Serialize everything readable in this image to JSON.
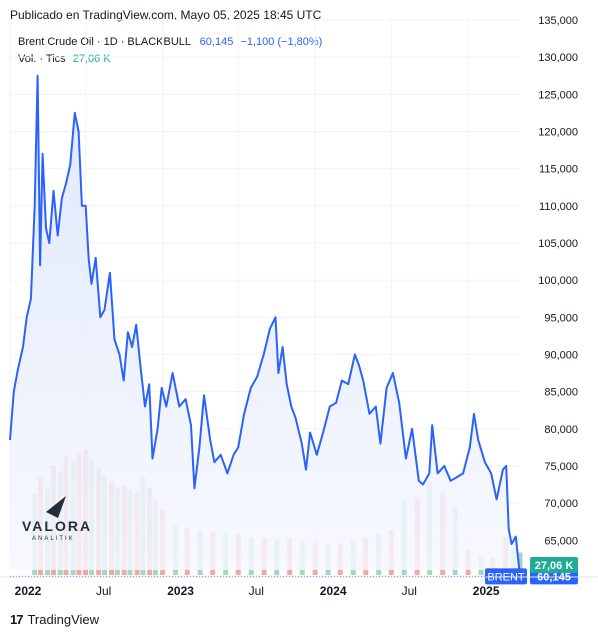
{
  "header": {
    "published": "Publicado en TradingView.com, Mayo 05, 2025 18:45 UTC"
  },
  "legend": {
    "symbol": "Brent Crude Oil · 1D · BLACKBULL",
    "last": "60,145",
    "change": "−1,100 (−1,80%)",
    "volume_label": "Vol. · Tics",
    "volume_value": "27,06 K"
  },
  "watermark": {
    "brand": "VALORA",
    "sub": "ANALITIK"
  },
  "footer": {
    "logo_glyph": "17",
    "brand": "TradingView"
  },
  "colors": {
    "line": "#2962ff",
    "area_top": "#dbe4fb",
    "area_bottom": "#f6f8fe",
    "vol_up": "#a5d6c4",
    "vol_down": "#f0a8a4",
    "price_tag_bg": "#2962ff",
    "volume_tag_bg": "#22ab94",
    "grid": "#f0f3fa",
    "axis_text": "#131722"
  },
  "chart_data": {
    "type": "line",
    "y_axis": {
      "min": 61000,
      "max": 135000,
      "ticks": [
        65000,
        70000,
        75000,
        80000,
        85000,
        90000,
        95000,
        100000,
        105000,
        110000,
        115000,
        120000,
        125000,
        130000,
        135000
      ],
      "tick_labels": [
        "65,000",
        "70,000",
        "75,000",
        "80,000",
        "85,000",
        "90,000",
        "95,000",
        "100,000",
        "105,000",
        "110,000",
        "115,000",
        "120,000",
        "125,000",
        "130,000",
        "135,000"
      ]
    },
    "x_axis": {
      "min": "2022-01-01",
      "max": "2025-05-05",
      "ticks": [
        "2022-01-01",
        "2022-07-01",
        "2023-01-01",
        "2023-07-01",
        "2024-01-01",
        "2024-07-01",
        "2025-01-01"
      ],
      "tick_labels": [
        "2022",
        "Jul",
        "2023",
        "Jul",
        "2024",
        "Jul",
        "2025"
      ],
      "bold_ticks": [
        "2022",
        "2023",
        "2024",
        "2025"
      ]
    },
    "price_tag": {
      "label": "BRENT",
      "value": "60,145",
      "y": 60145
    },
    "volume_tag": {
      "value": "27,06 K"
    },
    "series": [
      {
        "x": [
          "2022-01-01",
          "2022-01-10",
          "2022-01-20",
          "2022-02-01",
          "2022-02-10",
          "2022-02-20",
          "2022-03-01",
          "2022-03-08",
          "2022-03-14",
          "2022-03-20",
          "2022-03-28",
          "2022-04-05",
          "2022-04-15",
          "2022-04-25",
          "2022-05-05",
          "2022-05-15",
          "2022-05-25",
          "2022-06-05",
          "2022-06-14",
          "2022-06-22",
          "2022-07-01",
          "2022-07-08",
          "2022-07-15",
          "2022-07-25",
          "2022-08-05",
          "2022-08-15",
          "2022-08-28",
          "2022-09-08",
          "2022-09-20",
          "2022-09-30",
          "2022-10-10",
          "2022-10-20",
          "2022-10-30",
          "2022-11-10",
          "2022-11-20",
          "2022-11-30",
          "2022-12-08",
          "2022-12-20",
          "2022-12-30",
          "2023-01-10",
          "2023-01-25",
          "2023-02-10",
          "2023-02-25",
          "2023-03-10",
          "2023-03-18",
          "2023-03-30",
          "2023-04-10",
          "2023-04-25",
          "2023-05-05",
          "2023-05-20",
          "2023-06-05",
          "2023-06-20",
          "2023-07-01",
          "2023-07-15",
          "2023-07-31",
          "2023-08-15",
          "2023-08-31",
          "2023-09-15",
          "2023-09-28",
          "2023-10-05",
          "2023-10-15",
          "2023-10-25",
          "2023-11-05",
          "2023-11-15",
          "2023-11-30",
          "2023-12-10",
          "2023-12-20",
          "2024-01-05",
          "2024-01-20",
          "2024-02-05",
          "2024-02-20",
          "2024-03-05",
          "2024-03-20",
          "2024-04-05",
          "2024-04-15",
          "2024-04-25",
          "2024-05-10",
          "2024-05-25",
          "2024-06-05",
          "2024-06-20",
          "2024-07-05",
          "2024-07-20",
          "2024-08-05",
          "2024-08-20",
          "2024-09-05",
          "2024-09-15",
          "2024-09-30",
          "2024-10-07",
          "2024-10-20",
          "2024-11-05",
          "2024-11-20",
          "2024-12-05",
          "2024-12-20",
          "2025-01-05",
          "2025-01-15",
          "2025-01-25",
          "2025-02-10",
          "2025-02-25",
          "2025-03-10",
          "2025-03-25",
          "2025-04-02",
          "2025-04-08",
          "2025-04-15",
          "2025-04-25",
          "2025-05-05"
        ],
        "y": [
          78500,
          85000,
          88000,
          91000,
          95000,
          97500,
          110000,
          127500,
          102000,
          117000,
          107000,
          105000,
          112000,
          106000,
          111000,
          113000,
          115500,
          122500,
          120000,
          110000,
          110000,
          103000,
          99500,
          103000,
          95000,
          96000,
          101000,
          92000,
          90000,
          86500,
          93000,
          91000,
          94000,
          88000,
          83000,
          86000,
          76000,
          80000,
          85500,
          83000,
          87500,
          83000,
          84000,
          80500,
          72000,
          77500,
          84500,
          78500,
          75500,
          76500,
          74000,
          76500,
          77500,
          82000,
          85500,
          87000,
          90000,
          93500,
          95000,
          87500,
          91000,
          86000,
          83000,
          81500,
          78000,
          74500,
          79500,
          76500,
          79500,
          83000,
          83500,
          86500,
          86000,
          90000,
          88500,
          86500,
          82000,
          83000,
          78000,
          85500,
          87500,
          83500,
          76000,
          80000,
          73000,
          72500,
          74000,
          80500,
          74000,
          75000,
          73000,
          73500,
          74000,
          77500,
          82000,
          78500,
          75500,
          74000,
          70500,
          74500,
          75000,
          66500,
          64500,
          65500,
          60145
        ]
      }
    ],
    "volume": {
      "x": [
        "2022-03-01",
        "2022-03-15",
        "2022-04-01",
        "2022-04-15",
        "2022-05-01",
        "2022-05-15",
        "2022-06-01",
        "2022-06-15",
        "2022-07-01",
        "2022-07-15",
        "2022-08-01",
        "2022-08-15",
        "2022-09-01",
        "2022-09-15",
        "2022-10-01",
        "2022-10-15",
        "2022-11-01",
        "2022-11-15",
        "2022-12-01",
        "2022-12-15",
        "2023-01-01",
        "2023-02-01",
        "2023-03-01",
        "2023-04-01",
        "2023-05-01",
        "2023-06-01",
        "2023-07-01",
        "2023-08-01",
        "2023-09-01",
        "2023-10-01",
        "2023-11-01",
        "2023-12-01",
        "2024-01-01",
        "2024-02-01",
        "2024-03-01",
        "2024-04-01",
        "2024-05-01",
        "2024-06-01",
        "2024-07-01",
        "2024-08-01",
        "2024-09-01",
        "2024-10-01",
        "2024-11-01",
        "2024-12-01",
        "2025-01-01",
        "2025-02-01",
        "2025-03-01",
        "2025-04-01",
        "2025-04-20",
        "2025-05-05"
      ],
      "values": [
        65,
        78,
        70,
        88,
        82,
        95,
        90,
        98,
        100,
        92,
        85,
        80,
        75,
        70,
        72,
        68,
        66,
        78,
        70,
        60,
        52,
        40,
        38,
        36,
        35,
        34,
        33,
        30,
        30,
        28,
        30,
        28,
        26,
        24,
        25,
        28,
        30,
        33,
        36,
        60,
        62,
        74,
        66,
        55,
        20,
        16,
        14,
        30,
        22,
        18
      ],
      "up": [
        true,
        false,
        true,
        false,
        true,
        false,
        true,
        false,
        false,
        true,
        false,
        true,
        false,
        true,
        false,
        true,
        false,
        true,
        false,
        true,
        false,
        true,
        false,
        true,
        false,
        true,
        false,
        true,
        false,
        true,
        false,
        true,
        false,
        true,
        false,
        true,
        false,
        true,
        false,
        true,
        false,
        true,
        false,
        true,
        false,
        true,
        false,
        false,
        true,
        true
      ]
    }
  }
}
